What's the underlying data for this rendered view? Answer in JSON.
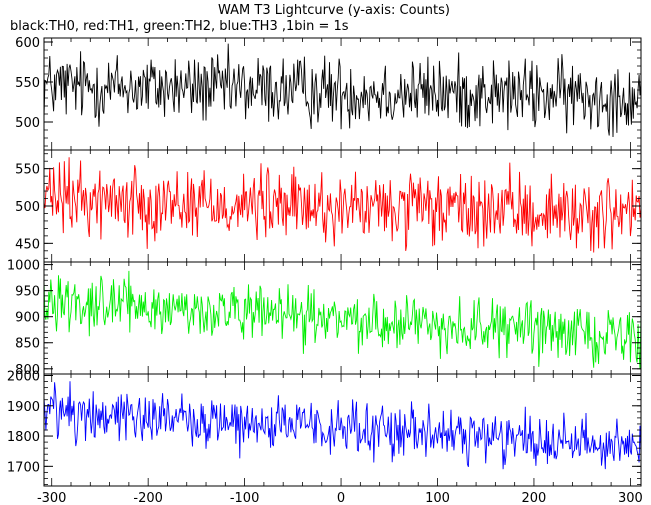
{
  "chart_data": {
    "type": "line",
    "title": "WAM T3 Lightcurve (y-axis: Counts)",
    "subtitle": "black:TH0, red:TH1, green:TH2, blue:TH3 ,1bin = 1s",
    "x_range": [
      -308,
      311
    ],
    "x_ticks": [
      -300,
      -200,
      -100,
      0,
      100,
      200,
      300
    ],
    "panels": [
      {
        "name": "TH0",
        "color": "#000000",
        "ylim": [
          465,
          605
        ],
        "y_ticks": [
          500,
          550,
          600
        ],
        "trend": {
          "x": [
            -300,
            -200,
            -100,
            0,
            100,
            200,
            300
          ],
          "y": [
            545,
            543,
            541,
            538,
            536,
            534,
            532
          ]
        },
        "noise_amplitude": 22
      },
      {
        "name": "TH1",
        "color": "#ff0000",
        "ylim": [
          425,
          575
        ],
        "y_ticks": [
          450,
          500,
          550
        ],
        "trend": {
          "x": [
            -300,
            -200,
            -100,
            0,
            100,
            200,
            300
          ],
          "y": [
            510,
            506,
            502,
            497,
            494,
            492,
            489
          ]
        },
        "noise_amplitude": 24
      },
      {
        "name": "TH2",
        "color": "#00ee00",
        "ylim": [
          790,
          1005
        ],
        "y_ticks": [
          800,
          850,
          900,
          950,
          1000
        ],
        "trend": {
          "x": [
            -300,
            -200,
            -100,
            0,
            100,
            200,
            300
          ],
          "y": [
            935,
            918,
            905,
            895,
            885,
            875,
            862
          ]
        },
        "noise_amplitude": 26
      },
      {
        "name": "TH3",
        "color": "#0000ff",
        "ylim": [
          1635,
          2005
        ],
        "y_ticks": [
          1700,
          1800,
          1900,
          2000
        ],
        "trend": {
          "x": [
            -300,
            -200,
            -100,
            0,
            100,
            200,
            300
          ],
          "y": [
            1885,
            1865,
            1845,
            1822,
            1805,
            1790,
            1775
          ]
        },
        "noise_amplitude": 45
      }
    ]
  }
}
